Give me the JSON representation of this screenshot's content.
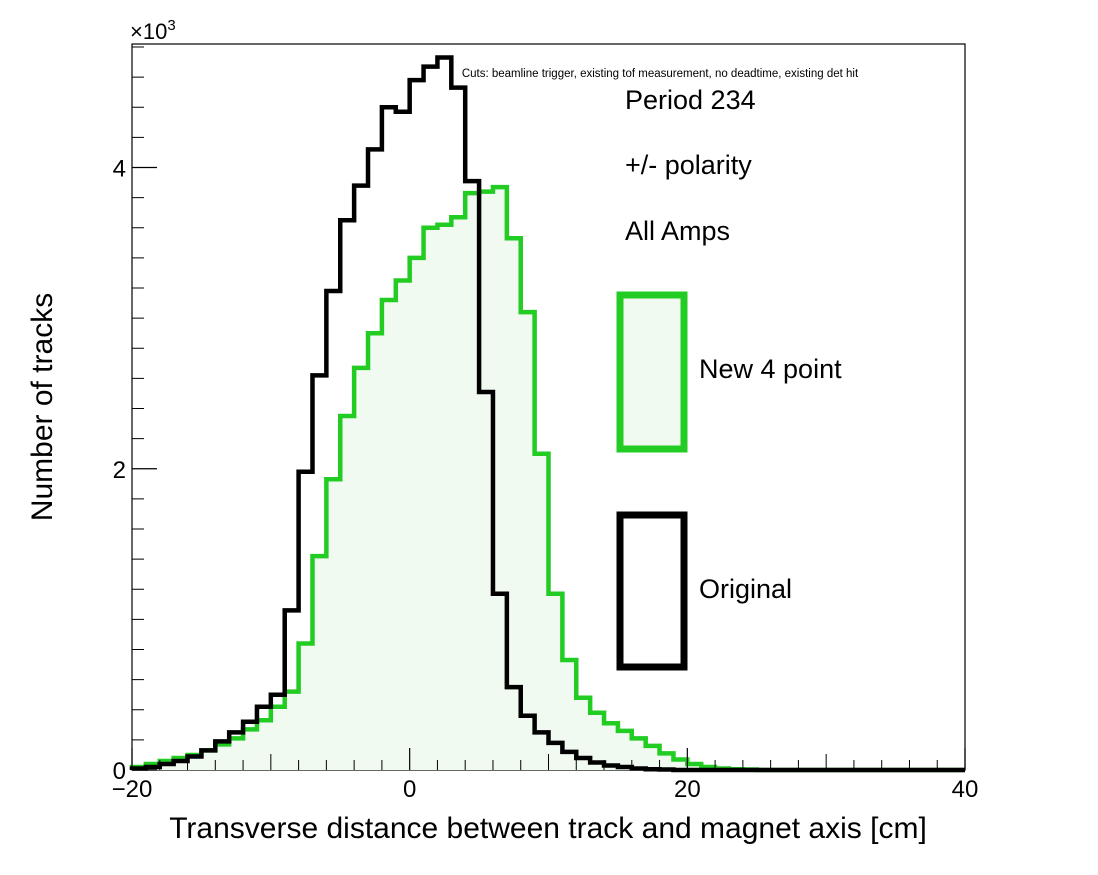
{
  "chart_data": {
    "type": "histogram",
    "title": "",
    "xlabel": "Transverse distance between track and magnet axis [cm]",
    "ylabel": "Number of tracks",
    "xlim": [
      -20,
      40
    ],
    "ylim": [
      0,
      4.82
    ],
    "y_multiplier": "×10",
    "y_multiplier_exp": "3",
    "x_ticks": [
      -20,
      0,
      20,
      40
    ],
    "x_tick_labels": [
      "−20",
      "0",
      "20",
      "40"
    ],
    "y_ticks": [
      0,
      2,
      4
    ],
    "y_tick_labels": [
      "0",
      "2",
      "4"
    ],
    "cuts_note": "Cuts: beamline trigger, existing tof measurement, no deadtime, existing det hit",
    "info_lines": [
      "Period 234",
      "+/- polarity",
      "All Amps"
    ],
    "bin_start": -20,
    "bin_width": 1,
    "series": [
      {
        "name": "New 4 point",
        "color": "#22cc22",
        "fill": "#f0faf0",
        "values": [
          0.02,
          0.04,
          0.06,
          0.08,
          0.1,
          0.13,
          0.17,
          0.21,
          0.27,
          0.33,
          0.42,
          0.52,
          0.84,
          1.42,
          1.93,
          2.35,
          2.67,
          2.9,
          3.12,
          3.25,
          3.4,
          3.6,
          3.62,
          3.67,
          3.83,
          3.84,
          3.87,
          3.53,
          3.04,
          2.1,
          1.17,
          0.73,
          0.48,
          0.38,
          0.31,
          0.26,
          0.21,
          0.16,
          0.11,
          0.07,
          0.04,
          0.02,
          0.01,
          0.005,
          0.003,
          0,
          0,
          0,
          0,
          0,
          0,
          0,
          0,
          0,
          0,
          0,
          0,
          0,
          0,
          0
        ]
      },
      {
        "name": "Original",
        "color": "#000000",
        "fill": "none",
        "values": [
          0.01,
          0.02,
          0.04,
          0.06,
          0.09,
          0.13,
          0.19,
          0.25,
          0.32,
          0.42,
          0.5,
          1.06,
          1.98,
          2.62,
          3.18,
          3.65,
          3.88,
          4.12,
          4.4,
          4.37,
          4.58,
          4.67,
          4.73,
          4.53,
          3.91,
          2.51,
          1.17,
          0.55,
          0.36,
          0.25,
          0.18,
          0.12,
          0.08,
          0.05,
          0.03,
          0.02,
          0.01,
          0.005,
          0.003,
          0,
          0,
          0,
          0,
          0,
          0,
          0,
          0,
          0,
          0,
          0,
          0,
          0,
          0,
          0,
          0,
          0,
          0,
          0,
          0,
          0
        ]
      }
    ]
  }
}
